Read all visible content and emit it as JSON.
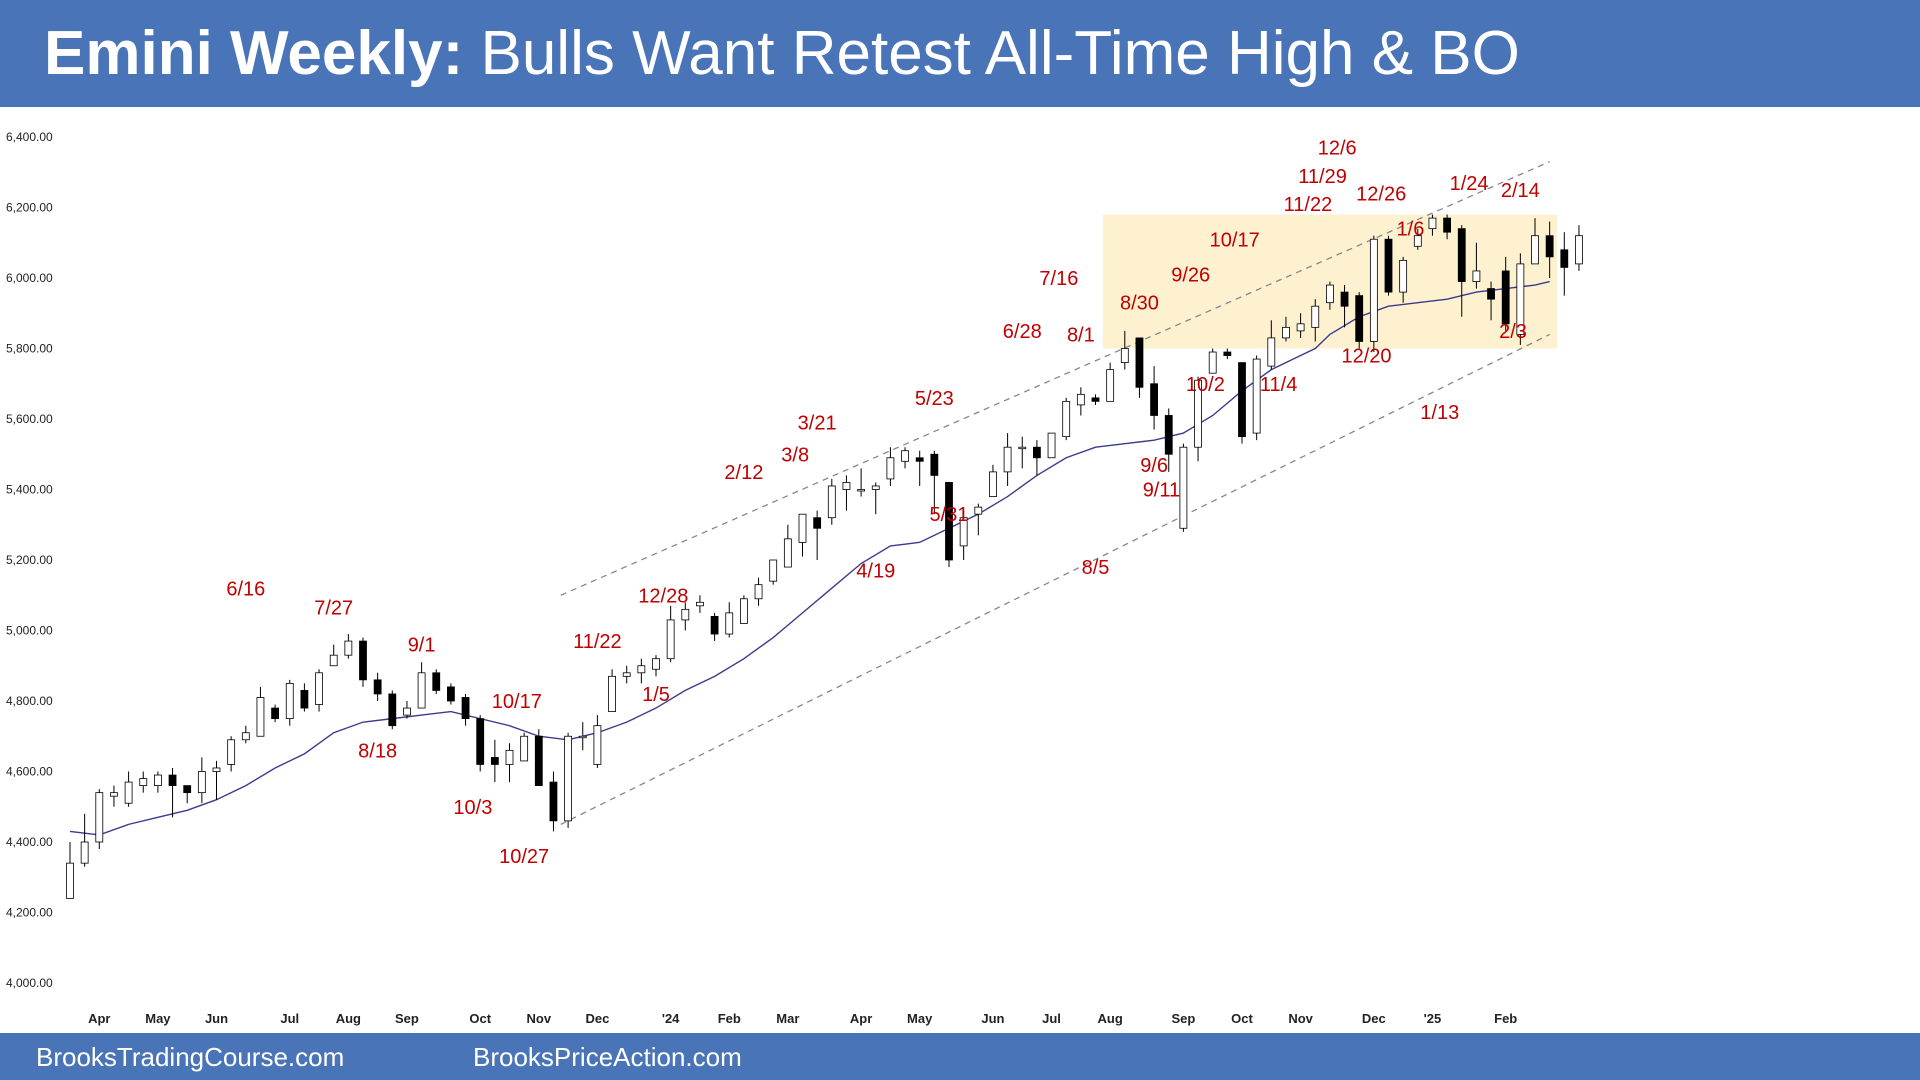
{
  "header": {
    "title_bold": "Emini Weekly:",
    "title_rest": "Bulls Want Retest All-Time High & BO"
  },
  "footer": {
    "left": "BrooksTradingCourse.com",
    "right": "BrooksPriceAction.com"
  },
  "colors": {
    "header_bg": "#4a74b8",
    "bull_body": "#ffffff",
    "bear_body": "#000000",
    "moving_average": "#3b3b8f",
    "annotation": "#c00000",
    "channel_line": "#888888",
    "range_highlight": "#fdf1d0"
  },
  "chart_data": {
    "type": "candlestick",
    "title": "",
    "ylim": [
      4000,
      6400
    ],
    "yticks": [
      "6,400.00",
      "6,200.00",
      "6,000.00",
      "5,800.00",
      "5,600.00",
      "5,400.00",
      "5,200.00",
      "5,000.00",
      "4,800.00",
      "4,600.00",
      "4,400.00",
      "4,200.00",
      "4,000.00"
    ],
    "grid": false,
    "xaxis_labels": [
      {
        "label": "Apr",
        "week": 2
      },
      {
        "label": "May",
        "week": 6
      },
      {
        "label": "Jun",
        "week": 10
      },
      {
        "label": "Jul",
        "week": 15
      },
      {
        "label": "Aug",
        "week": 19
      },
      {
        "label": "Sep",
        "week": 23
      },
      {
        "label": "Oct",
        "week": 28
      },
      {
        "label": "Nov",
        "week": 32
      },
      {
        "label": "Dec",
        "week": 36
      },
      {
        "label": "'24",
        "week": 41
      },
      {
        "label": "Feb",
        "week": 45
      },
      {
        "label": "Mar",
        "week": 49
      },
      {
        "label": "Apr",
        "week": 54
      },
      {
        "label": "May",
        "week": 58
      },
      {
        "label": "Jun",
        "week": 63
      },
      {
        "label": "Jul",
        "week": 67
      },
      {
        "label": "Aug",
        "week": 71
      },
      {
        "label": "Sep",
        "week": 76
      },
      {
        "label": "Oct",
        "week": 80
      },
      {
        "label": "Nov",
        "week": 84
      },
      {
        "label": "Dec",
        "week": 89
      },
      {
        "label": "'25",
        "week": 93
      },
      {
        "label": "Feb",
        "week": 98
      }
    ],
    "candles": [
      [
        4240,
        4340,
        4240,
        4400
      ],
      [
        4340,
        4400,
        4330,
        4480
      ],
      [
        4400,
        4540,
        4380,
        4550
      ],
      [
        4530,
        4540,
        4500,
        4560
      ],
      [
        4510,
        4570,
        4500,
        4600
      ],
      [
        4560,
        4580,
        4540,
        4600
      ],
      [
        4560,
        4590,
        4540,
        4600
      ],
      [
        4590,
        4560,
        4470,
        4610
      ],
      [
        4560,
        4540,
        4510,
        4560
      ],
      [
        4540,
        4600,
        4510,
        4640
      ],
      [
        4600,
        4610,
        4520,
        4630
      ],
      [
        4620,
        4690,
        4600,
        4700
      ],
      [
        4690,
        4710,
        4680,
        4730
      ],
      [
        4700,
        4810,
        4700,
        4840
      ],
      [
        4780,
        4750,
        4740,
        4790
      ],
      [
        4750,
        4850,
        4730,
        4860
      ],
      [
        4830,
        4780,
        4770,
        4850
      ],
      [
        4790,
        4880,
        4770,
        4890
      ],
      [
        4900,
        4930,
        4900,
        4960
      ],
      [
        4930,
        4970,
        4920,
        4990
      ],
      [
        4970,
        4860,
        4840,
        4980
      ],
      [
        4860,
        4820,
        4800,
        4880
      ],
      [
        4820,
        4730,
        4720,
        4830
      ],
      [
        4760,
        4780,
        4750,
        4800
      ],
      [
        4780,
        4880,
        4780,
        4910
      ],
      [
        4880,
        4830,
        4820,
        4890
      ],
      [
        4840,
        4800,
        4790,
        4850
      ],
      [
        4810,
        4750,
        4730,
        4820
      ],
      [
        4750,
        4620,
        4600,
        4760
      ],
      [
        4640,
        4620,
        4570,
        4690
      ],
      [
        4620,
        4660,
        4570,
        4680
      ],
      [
        4630,
        4700,
        4630,
        4710
      ],
      [
        4700,
        4560,
        4560,
        4720
      ],
      [
        4570,
        4460,
        4430,
        4600
      ],
      [
        4460,
        4700,
        4440,
        4710
      ],
      [
        4700,
        4700,
        4660,
        4740
      ],
      [
        4620,
        4730,
        4610,
        4760
      ],
      [
        4770,
        4870,
        4770,
        4890
      ],
      [
        4870,
        4880,
        4850,
        4900
      ],
      [
        4880,
        4900,
        4850,
        4920
      ],
      [
        4890,
        4920,
        4870,
        4930
      ],
      [
        4920,
        5030,
        4910,
        5070
      ],
      [
        5030,
        5060,
        5000,
        5080
      ],
      [
        5070,
        5080,
        5050,
        5100
      ],
      [
        5040,
        4990,
        4970,
        5050
      ],
      [
        4990,
        5050,
        4980,
        5080
      ],
      [
        5020,
        5090,
        5020,
        5100
      ],
      [
        5090,
        5130,
        5070,
        5150
      ],
      [
        5140,
        5200,
        5130,
        5200
      ],
      [
        5180,
        5260,
        5200,
        5300
      ],
      [
        5250,
        5330,
        5210,
        5330
      ],
      [
        5320,
        5290,
        5200,
        5340
      ],
      [
        5320,
        5410,
        5300,
        5430
      ],
      [
        5400,
        5420,
        5340,
        5440
      ],
      [
        5400,
        5400,
        5380,
        5460
      ],
      [
        5400,
        5410,
        5330,
        5420
      ],
      [
        5430,
        5490,
        5410,
        5520
      ],
      [
        5480,
        5510,
        5460,
        5520
      ],
      [
        5490,
        5480,
        5410,
        5510
      ],
      [
        5500,
        5440,
        5330,
        5510
      ],
      [
        5420,
        5200,
        5180,
        5420
      ],
      [
        5240,
        5320,
        5200,
        5340
      ],
      [
        5330,
        5350,
        5270,
        5360
      ],
      [
        5380,
        5450,
        5380,
        5470
      ],
      [
        5450,
        5520,
        5410,
        5560
      ],
      [
        5520,
        5520,
        5460,
        5550
      ],
      [
        5520,
        5490,
        5440,
        5540
      ],
      [
        5490,
        5560,
        5490,
        5560
      ],
      [
        5550,
        5650,
        5540,
        5660
      ],
      [
        5640,
        5670,
        5610,
        5690
      ],
      [
        5660,
        5650,
        5640,
        5670
      ],
      [
        5650,
        5740,
        5650,
        5760
      ],
      [
        5760,
        5800,
        5740,
        5850
      ],
      [
        5830,
        5690,
        5660,
        5830
      ],
      [
        5700,
        5610,
        5570,
        5750
      ],
      [
        5610,
        5500,
        5450,
        5630
      ],
      [
        5290,
        5520,
        5280,
        5530
      ],
      [
        5520,
        5710,
        5480,
        5720
      ],
      [
        5730,
        5790,
        5730,
        5800
      ],
      [
        5790,
        5780,
        5770,
        5800
      ],
      [
        5760,
        5550,
        5530,
        5760
      ],
      [
        5560,
        5770,
        5540,
        5780
      ],
      [
        5750,
        5830,
        5740,
        5880
      ],
      [
        5830,
        5860,
        5820,
        5890
      ],
      [
        5850,
        5870,
        5830,
        5900
      ],
      [
        5860,
        5920,
        5820,
        5940
      ],
      [
        5930,
        5980,
        5910,
        5990
      ],
      [
        5960,
        5920,
        5860,
        5980
      ],
      [
        5950,
        5820,
        5800,
        5960
      ],
      [
        5820,
        6110,
        5790,
        6120
      ],
      [
        6110,
        5960,
        5950,
        6120
      ],
      [
        5960,
        6050,
        5930,
        6060
      ],
      [
        6090,
        6120,
        6080,
        6140
      ],
      [
        6140,
        6170,
        6120,
        6180
      ],
      [
        6170,
        6130,
        6110,
        6180
      ],
      [
        6140,
        5990,
        5890,
        6150
      ],
      [
        5990,
        6020,
        5970,
        6100
      ],
      [
        5970,
        5940,
        5880,
        5990
      ],
      [
        6020,
        5870,
        5850,
        6060
      ],
      [
        5840,
        6040,
        5810,
        6070
      ],
      [
        6040,
        6120,
        6040,
        6170
      ],
      [
        6120,
        6060,
        6000,
        6160
      ],
      [
        6080,
        6030,
        5950,
        6130
      ],
      [
        6040,
        6120,
        6020,
        6150
      ]
    ],
    "moving_average": [
      [
        0,
        4430
      ],
      [
        2,
        4420
      ],
      [
        4,
        4450
      ],
      [
        6,
        4470
      ],
      [
        8,
        4490
      ],
      [
        10,
        4520
      ],
      [
        12,
        4560
      ],
      [
        14,
        4610
      ],
      [
        16,
        4650
      ],
      [
        18,
        4710
      ],
      [
        20,
        4740
      ],
      [
        22,
        4750
      ],
      [
        24,
        4760
      ],
      [
        26,
        4770
      ],
      [
        28,
        4750
      ],
      [
        30,
        4730
      ],
      [
        32,
        4700
      ],
      [
        34,
        4690
      ],
      [
        36,
        4710
      ],
      [
        38,
        4740
      ],
      [
        40,
        4780
      ],
      [
        42,
        4830
      ],
      [
        44,
        4870
      ],
      [
        46,
        4920
      ],
      [
        48,
        4980
      ],
      [
        50,
        5050
      ],
      [
        52,
        5120
      ],
      [
        54,
        5190
      ],
      [
        56,
        5240
      ],
      [
        57,
        5245
      ],
      [
        58,
        5250
      ],
      [
        60,
        5290
      ],
      [
        62,
        5330
      ],
      [
        64,
        5380
      ],
      [
        66,
        5440
      ],
      [
        68,
        5490
      ],
      [
        70,
        5520
      ],
      [
        72,
        5530
      ],
      [
        74,
        5540
      ],
      [
        76,
        5560
      ],
      [
        78,
        5610
      ],
      [
        80,
        5680
      ],
      [
        82,
        5740
      ],
      [
        84,
        5780
      ],
      [
        85,
        5800
      ],
      [
        86,
        5840
      ],
      [
        88,
        5890
      ],
      [
        90,
        5920
      ],
      [
        92,
        5930
      ],
      [
        93,
        5935
      ],
      [
        94,
        5940
      ],
      [
        96,
        5960
      ],
      [
        98,
        5970
      ],
      [
        100,
        5980
      ],
      [
        101,
        5990
      ]
    ],
    "channel_lines": [
      {
        "from": [
          33.5,
          5100
        ],
        "to": [
          101,
          6330
        ]
      },
      {
        "from": [
          33.5,
          4450
        ],
        "to": [
          101,
          5840
        ]
      }
    ],
    "trading_range": {
      "from_week": 70.5,
      "to_week": 101.5,
      "top": 6180,
      "bottom": 5800
    },
    "annotations": [
      {
        "text": "6/16",
        "week": 12,
        "price": 5100
      },
      {
        "text": "7/27",
        "week": 18,
        "price": 5045
      },
      {
        "text": "9/1",
        "week": 24,
        "price": 4940
      },
      {
        "text": "8/18",
        "week": 21,
        "price": 4640
      },
      {
        "text": "10/17",
        "week": 30.5,
        "price": 4780
      },
      {
        "text": "10/3",
        "week": 27.5,
        "price": 4480
      },
      {
        "text": "10/27",
        "week": 31,
        "price": 4340
      },
      {
        "text": "11/22",
        "week": 36,
        "price": 4950
      },
      {
        "text": "12/28",
        "week": 40.5,
        "price": 5080
      },
      {
        "text": "1/5",
        "week": 40,
        "price": 4800
      },
      {
        "text": "2/12",
        "week": 46,
        "price": 5430
      },
      {
        "text": "3/8",
        "week": 49.5,
        "price": 5480
      },
      {
        "text": "3/21",
        "week": 51,
        "price": 5570
      },
      {
        "text": "4/19",
        "week": 55,
        "price": 5150
      },
      {
        "text": "5/23",
        "week": 59,
        "price": 5640
      },
      {
        "text": "5/31",
        "week": 60,
        "price": 5310
      },
      {
        "text": "6/28",
        "week": 65,
        "price": 5830
      },
      {
        "text": "7/16",
        "week": 67.5,
        "price": 5980
      },
      {
        "text": "8/1",
        "week": 69,
        "price": 5820
      },
      {
        "text": "8/30",
        "week": 73,
        "price": 5910
      },
      {
        "text": "8/5",
        "week": 70,
        "price": 5160
      },
      {
        "text": "9/6",
        "week": 74,
        "price": 5450
      },
      {
        "text": "9/11",
        "week": 74.5,
        "price": 5380
      },
      {
        "text": "9/26",
        "week": 76.5,
        "price": 5990
      },
      {
        "text": "10/17",
        "week": 79.5,
        "price": 6090
      },
      {
        "text": "10/2",
        "week": 77.5,
        "price": 5680
      },
      {
        "text": "11/4",
        "week": 82.5,
        "price": 5680
      },
      {
        "text": "11/22",
        "week": 84.5,
        "price": 6190
      },
      {
        "text": "11/29",
        "week": 85.5,
        "price": 6270
      },
      {
        "text": "12/6",
        "week": 86.5,
        "price": 6350
      },
      {
        "text": "12/26",
        "week": 89.5,
        "price": 6220
      },
      {
        "text": "12/20",
        "week": 88.5,
        "price": 5760
      },
      {
        "text": "1/6",
        "week": 91.5,
        "price": 6120
      },
      {
        "text": "1/24",
        "week": 95.5,
        "price": 6250
      },
      {
        "text": "2/14",
        "week": 99,
        "price": 6230
      },
      {
        "text": "2/3",
        "week": 98.5,
        "price": 5830
      },
      {
        "text": "1/13",
        "week": 93.5,
        "price": 5600
      }
    ]
  }
}
